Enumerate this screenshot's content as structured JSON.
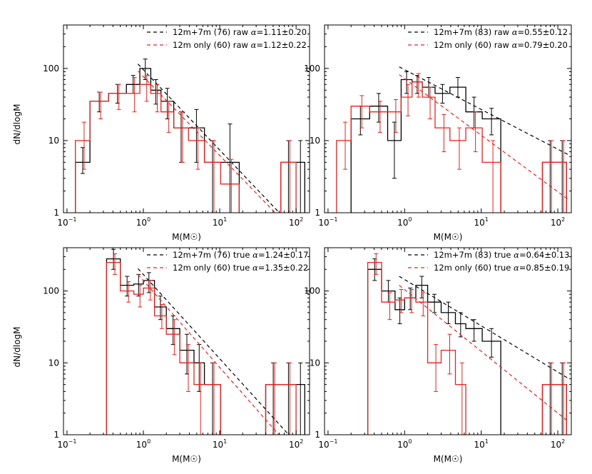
{
  "figure": {
    "ylabel": "dN/dlogM",
    "xlabel": "M(M☉)"
  },
  "axes_common": {
    "xscale": "log",
    "yscale": "log",
    "xlim": [
      0.09,
      150
    ],
    "ylim": [
      1,
      400
    ],
    "xticks": [
      0.1,
      1,
      10,
      100
    ],
    "xtick_labels": [
      {
        "base": "10",
        "exp": "−1"
      },
      {
        "base": "10",
        "exp": "0"
      },
      {
        "base": "10",
        "exp": "1"
      },
      {
        "base": "10",
        "exp": "2"
      }
    ],
    "yticks": [
      1,
      10,
      100
    ],
    "ytick_labels": [
      "1",
      "10",
      "100"
    ],
    "colors": {
      "black": "#000000",
      "red": "#e8211d"
    }
  },
  "chart_data": [
    {
      "type": "line",
      "panel": "top-left",
      "legend_position": "top-right",
      "series": [
        {
          "name": "12m+7m (76) raw α=1.11±0.20",
          "label_plain": "12m+7m (76) raw",
          "alpha_text": "1.11±0.20",
          "color": "black",
          "edges": [
            0.129,
            0.2,
            0.35,
            0.6,
            0.9,
            1.25,
            1.7,
            2.5,
            3.9,
            6.3,
            10.3,
            18,
            28,
            40,
            63,
            100,
            130
          ],
          "counts": [
            5,
            35,
            45,
            60,
            100,
            50,
            35,
            15,
            15,
            5,
            5,
            0,
            0,
            0,
            5,
            5
          ],
          "err_lo": [
            1.5,
            10,
            12,
            15,
            30,
            18,
            15,
            10,
            10,
            4,
            4,
            0,
            0,
            0,
            4,
            4
          ],
          "err_hi": [
            3,
            12,
            15,
            20,
            35,
            20,
            18,
            10,
            12,
            5,
            12,
            0,
            0,
            0,
            5,
            5
          ],
          "fit": {
            "m1": 0.85,
            "y1": 115,
            "m2": 80,
            "y2": 0.73
          }
        },
        {
          "name": "12m only (60) raw α=1.12±0.22",
          "label_plain": "12m only (60) raw",
          "alpha_text": "1.12±0.22",
          "color": "red",
          "edges": [
            0.129,
            0.2,
            0.35,
            0.6,
            0.9,
            1.25,
            1.7,
            2.5,
            3.9,
            6.3,
            10.3,
            18,
            28,
            40,
            63,
            100,
            130
          ],
          "counts": [
            10,
            35,
            45,
            45,
            60,
            45,
            25,
            15,
            10,
            5,
            2.5,
            0,
            0,
            0,
            5,
            0
          ],
          "err_lo": [
            6,
            15,
            18,
            20,
            25,
            20,
            12,
            10,
            6,
            4,
            2,
            0,
            0,
            0,
            4,
            0
          ],
          "err_hi": [
            8,
            12,
            15,
            30,
            20,
            15,
            10,
            10,
            5,
            5,
            3,
            0,
            0,
            0,
            5,
            0
          ],
          "fit": {
            "m1": 0.85,
            "y1": 92,
            "m2": 80,
            "y2": 0.64
          }
        }
      ]
    },
    {
      "type": "line",
      "panel": "top-right",
      "legend_position": "top-right",
      "series": [
        {
          "name": "12m+7m (83) raw α=0.55±0.12",
          "label_plain": "12m+7m (83) raw",
          "alpha_text": "0.55±0.12",
          "color": "black",
          "edges": [
            0.129,
            0.2,
            0.35,
            0.6,
            0.9,
            1.25,
            1.7,
            2.5,
            3.9,
            6.3,
            10.3,
            18,
            28,
            40,
            63,
            100,
            130
          ],
          "counts": [
            0,
            20,
            30,
            10,
            70,
            65,
            55,
            45,
            55,
            25,
            20,
            0,
            0,
            0,
            5,
            5
          ],
          "err_lo": [
            0,
            8,
            12,
            7,
            25,
            20,
            15,
            12,
            15,
            10,
            8,
            0,
            0,
            0,
            4,
            4
          ],
          "err_hi": [
            0,
            10,
            15,
            8,
            20,
            15,
            20,
            15,
            20,
            15,
            8,
            0,
            0,
            0,
            5,
            5
          ],
          "fit": {
            "m1": 0.85,
            "y1": 105,
            "m2": 140,
            "y2": 6.3
          }
        },
        {
          "name": "12m only (60) raw α=0.79±0.20",
          "label_plain": "12m only (60) raw",
          "alpha_text": "0.79±0.20",
          "color": "red",
          "edges": [
            0.129,
            0.2,
            0.35,
            0.6,
            0.9,
            1.25,
            1.7,
            2.5,
            3.9,
            6.3,
            10.3,
            18,
            28,
            40,
            63,
            100,
            130
          ],
          "counts": [
            10,
            30,
            25,
            25,
            40,
            65,
            40,
            15,
            10,
            15,
            5,
            0,
            0,
            0,
            5,
            5
          ],
          "err_lo": [
            6,
            15,
            12,
            12,
            18,
            25,
            20,
            8,
            6,
            8,
            4,
            0,
            0,
            0,
            4,
            4
          ],
          "err_hi": [
            8,
            12,
            10,
            12,
            20,
            20,
            15,
            8,
            5,
            10,
            5,
            0,
            0,
            0,
            5,
            5
          ],
          "fit": {
            "m1": 0.85,
            "y1": 82,
            "m2": 140,
            "y2": 1.5
          }
        }
      ]
    },
    {
      "type": "line",
      "panel": "bottom-left",
      "legend_position": "top-right",
      "series": [
        {
          "name": "12m+7m (76) true α=1.24±0.17",
          "label_plain": "12m+7m (76) true",
          "alpha_text": "1.24±0.17",
          "color": "black",
          "edges": [
            0.33,
            0.5,
            0.75,
            1.0,
            1.4,
            2.0,
            3.0,
            4.6,
            6.3,
            10.3,
            18,
            28,
            40,
            63,
            100,
            130
          ],
          "counts": [
            280,
            120,
            125,
            140,
            60,
            30,
            15,
            10,
            5,
            0,
            0,
            0,
            5,
            5,
            5
          ],
          "err_lo": [
            80,
            35,
            40,
            45,
            20,
            12,
            8,
            6,
            4,
            0,
            0,
            0,
            4,
            4,
            4
          ],
          "err_hi": [
            100,
            40,
            45,
            40,
            25,
            15,
            10,
            8,
            5,
            0,
            0,
            0,
            5,
            5,
            5
          ],
          "fit": {
            "m1": 0.85,
            "y1": 205,
            "m2": 80,
            "y2": 1.0
          }
        },
        {
          "name": "12m only (60) true α=1.35±0.22",
          "label_plain": "12m only (60) true",
          "alpha_text": "1.35±0.22",
          "color": "red",
          "edges": [
            0.33,
            0.5,
            0.75,
            1.0,
            1.4,
            2.0,
            3.0,
            4.6,
            6.3,
            10.3,
            18,
            28,
            40,
            63,
            100,
            130
          ],
          "counts": [
            250,
            100,
            90,
            110,
            45,
            25,
            10,
            5,
            5,
            0,
            0,
            0,
            5,
            5,
            0
          ],
          "err_lo": [
            80,
            30,
            30,
            35,
            15,
            12,
            6,
            4,
            4,
            0,
            0,
            0,
            4,
            4,
            0
          ],
          "err_hi": [
            80,
            35,
            30,
            30,
            20,
            15,
            8,
            5,
            5,
            0,
            0,
            0,
            5,
            5,
            0
          ],
          "fit": {
            "m1": 0.85,
            "y1": 170,
            "m2": 80,
            "y2": 0.7
          }
        }
      ]
    },
    {
      "type": "line",
      "panel": "bottom-right",
      "legend_position": "top-right",
      "series": [
        {
          "name": "12m+7m (83) true α=0.64±0.13",
          "label_plain": "12m+7m (83) true",
          "alpha_text": "0.64±0.13",
          "color": "black",
          "edges": [
            0.33,
            0.5,
            0.75,
            1.0,
            1.4,
            2.0,
            3.0,
            4.6,
            6.3,
            10.3,
            18,
            28,
            40,
            63,
            100,
            130
          ],
          "counts": [
            200,
            100,
            55,
            80,
            120,
            70,
            50,
            35,
            30,
            20,
            0,
            0,
            0,
            5,
            5
          ],
          "err_lo": [
            60,
            30,
            20,
            25,
            40,
            20,
            15,
            12,
            10,
            8,
            0,
            0,
            0,
            4,
            4
          ],
          "err_hi": [
            80,
            40,
            25,
            30,
            40,
            20,
            20,
            15,
            10,
            10,
            0,
            0,
            0,
            5,
            5
          ],
          "fit": {
            "m1": 0.85,
            "y1": 160,
            "m2": 140,
            "y2": 6.0
          }
        },
        {
          "name": "12m only (60) true α=0.85±0.19",
          "label_plain": "12m only (60) true",
          "alpha_text": "0.85±0.19",
          "color": "red",
          "edges": [
            0.33,
            0.5,
            0.75,
            1.0,
            1.4,
            2.0,
            3.0,
            4.6,
            6.3,
            10.3,
            18,
            28,
            40,
            63,
            100,
            130
          ],
          "counts": [
            250,
            70,
            75,
            80,
            70,
            10,
            15,
            5,
            0,
            0,
            0,
            0,
            0,
            5,
            5
          ],
          "err_lo": [
            80,
            30,
            25,
            30,
            25,
            6,
            8,
            4,
            0,
            0,
            0,
            0,
            0,
            4,
            4
          ],
          "err_hi": [
            80,
            25,
            30,
            25,
            25,
            8,
            10,
            5,
            0,
            0,
            0,
            0,
            0,
            5,
            5
          ],
          "fit": {
            "m1": 0.85,
            "y1": 120,
            "m2": 140,
            "y2": 1.5
          }
        }
      ]
    }
  ]
}
